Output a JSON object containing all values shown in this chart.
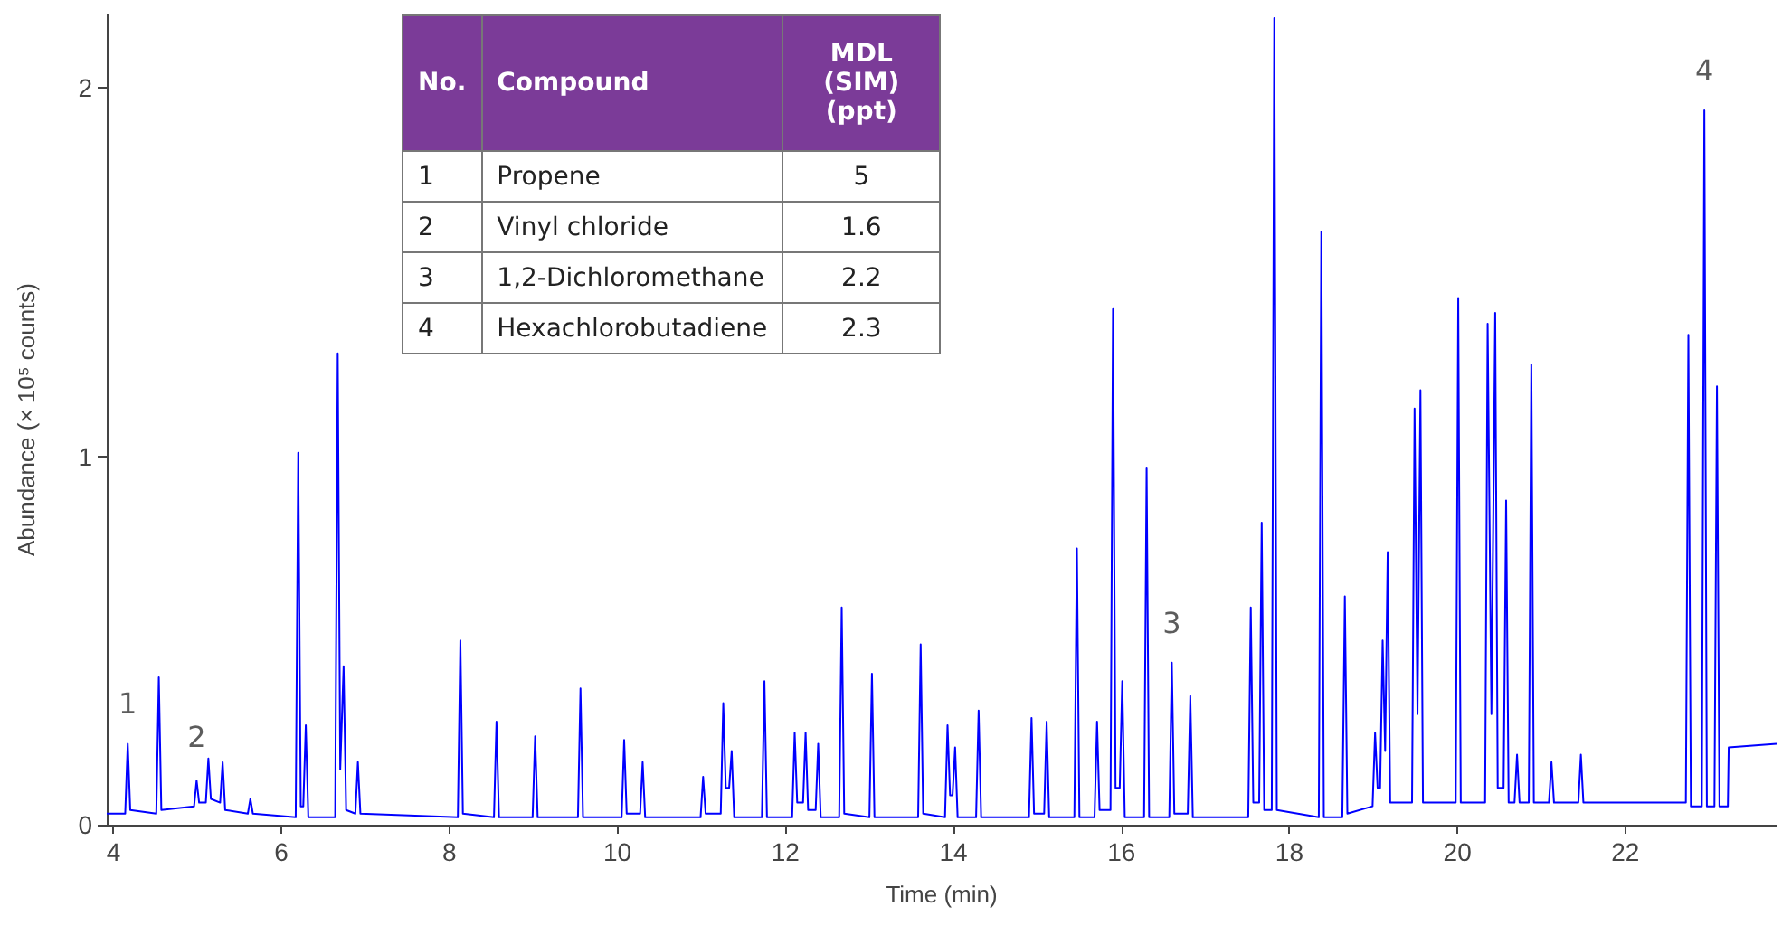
{
  "chart_data": [
    {
      "type": "line",
      "xlabel": "Time (min)",
      "ylabel": "Abundance (× 10⁵ counts)",
      "xlim": [
        3.92,
        23.8
      ],
      "xticks": [
        4,
        6,
        8,
        10,
        12,
        14,
        16,
        18,
        20,
        22
      ],
      "ylim": [
        0,
        2.2
      ],
      "yticks": [
        0,
        1,
        2
      ],
      "grid": false,
      "marker": "none",
      "line_style": "solid",
      "annotations": [
        {
          "text": "1",
          "x": 4.17,
          "y": 0.22
        },
        {
          "text": "2",
          "x": 4.99,
          "y": 0.13
        },
        {
          "text": "3",
          "x": 16.6,
          "y": 0.44
        },
        {
          "text": "4",
          "x": 22.94,
          "y": 1.94
        },
        "No.",
        "Compound",
        "MDL (SIM) (ppt)",
        "1",
        "Propene",
        "5",
        "2",
        "Vinyl chloride",
        "1.6",
        "3",
        "1,2-Dichloromethane",
        "2.2",
        "4",
        "Hexachlorobutadiene",
        "2.3"
      ],
      "series": [
        {
          "color": "#0000ff",
          "x": [
            3.92,
            4.14,
            4.17,
            4.2,
            4.51,
            4.54,
            4.57,
            4.96,
            4.99,
            5.02,
            5.1,
            5.13,
            5.16,
            5.27,
            5.3,
            5.33,
            5.6,
            5.63,
            5.66,
            6.17,
            6.2,
            6.23,
            6.26,
            6.29,
            6.32,
            6.64,
            6.67,
            6.7,
            6.74,
            6.77,
            6.88,
            6.91,
            6.94,
            8.1,
            8.13,
            8.16,
            8.53,
            8.56,
            8.59,
            8.99,
            9.02,
            9.05,
            9.53,
            9.56,
            9.59,
            10.05,
            10.08,
            10.11,
            10.27,
            10.3,
            10.33,
            10.99,
            11.02,
            11.05,
            11.23,
            11.26,
            11.29,
            11.33,
            11.36,
            11.39,
            11.72,
            11.75,
            11.78,
            12.08,
            12.11,
            12.14,
            12.21,
            12.24,
            12.27,
            12.36,
            12.39,
            12.42,
            12.64,
            12.67,
            12.7,
            13.0,
            13.03,
            13.06,
            13.58,
            13.61,
            13.64,
            13.9,
            13.93,
            13.96,
            13.99,
            14.02,
            14.05,
            14.27,
            14.3,
            14.33,
            14.9,
            14.93,
            14.96,
            15.08,
            15.11,
            15.14,
            15.44,
            15.47,
            15.5,
            15.68,
            15.71,
            15.74,
            15.87,
            15.9,
            15.93,
            15.98,
            16.01,
            16.04,
            16.27,
            16.3,
            16.33,
            16.57,
            16.6,
            16.63,
            16.79,
            16.82,
            16.85,
            17.51,
            17.54,
            17.57,
            17.64,
            17.67,
            17.7,
            17.79,
            17.82,
            17.85,
            18.35,
            18.38,
            18.41,
            18.63,
            18.66,
            18.69,
            18.99,
            19.02,
            19.05,
            19.08,
            19.11,
            19.14,
            19.17,
            19.2,
            19.46,
            19.49,
            19.525,
            19.56,
            19.59,
            19.98,
            20.01,
            20.04,
            20.33,
            20.36,
            20.405,
            20.45,
            20.48,
            20.55,
            20.58,
            20.61,
            20.68,
            20.71,
            20.74,
            20.85,
            20.88,
            20.91,
            21.09,
            21.12,
            21.15,
            21.44,
            21.47,
            21.5,
            22.72,
            22.75,
            22.78,
            22.91,
            22.94,
            22.97,
            23.06,
            23.09,
            23.12,
            23.22,
            23.23,
            23.8
          ],
          "values": [
            0.03,
            0.03,
            0.22,
            0.04,
            0.03,
            0.4,
            0.04,
            0.05,
            0.12,
            0.06,
            0.06,
            0.18,
            0.07,
            0.06,
            0.17,
            0.04,
            0.03,
            0.07,
            0.03,
            0.02,
            1.01,
            0.05,
            0.05,
            0.27,
            0.02,
            0.02,
            1.28,
            0.15,
            0.43,
            0.04,
            0.03,
            0.17,
            0.03,
            0.02,
            0.5,
            0.03,
            0.02,
            0.28,
            0.02,
            0.02,
            0.24,
            0.02,
            0.02,
            0.37,
            0.02,
            0.02,
            0.23,
            0.03,
            0.03,
            0.17,
            0.02,
            0.02,
            0.13,
            0.03,
            0.03,
            0.33,
            0.1,
            0.1,
            0.2,
            0.02,
            0.02,
            0.39,
            0.02,
            0.02,
            0.25,
            0.06,
            0.06,
            0.25,
            0.04,
            0.04,
            0.22,
            0.02,
            0.02,
            0.59,
            0.03,
            0.02,
            0.41,
            0.02,
            0.02,
            0.49,
            0.03,
            0.02,
            0.27,
            0.08,
            0.08,
            0.21,
            0.02,
            0.02,
            0.31,
            0.02,
            0.02,
            0.29,
            0.03,
            0.03,
            0.28,
            0.02,
            0.02,
            0.75,
            0.02,
            0.02,
            0.28,
            0.04,
            0.04,
            1.4,
            0.1,
            0.1,
            0.39,
            0.02,
            0.02,
            0.97,
            0.02,
            0.02,
            0.44,
            0.03,
            0.03,
            0.35,
            0.02,
            0.02,
            0.59,
            0.06,
            0.06,
            0.82,
            0.04,
            0.04,
            2.19,
            0.04,
            0.02,
            1.61,
            0.02,
            0.02,
            0.62,
            0.03,
            0.05,
            0.25,
            0.1,
            0.1,
            0.5,
            0.2,
            0.74,
            0.06,
            0.06,
            1.13,
            0.3,
            1.18,
            0.06,
            0.06,
            1.43,
            0.06,
            0.06,
            1.36,
            0.3,
            1.39,
            0.1,
            0.1,
            0.88,
            0.06,
            0.06,
            0.19,
            0.06,
            0.06,
            1.25,
            0.06,
            0.06,
            0.17,
            0.06,
            0.06,
            0.19,
            0.06,
            0.06,
            1.33,
            0.05,
            0.05,
            1.94,
            0.05,
            0.05,
            1.19,
            0.05,
            0.05,
            0.21,
            0.22
          ]
        }
      ]
    }
  ]
}
